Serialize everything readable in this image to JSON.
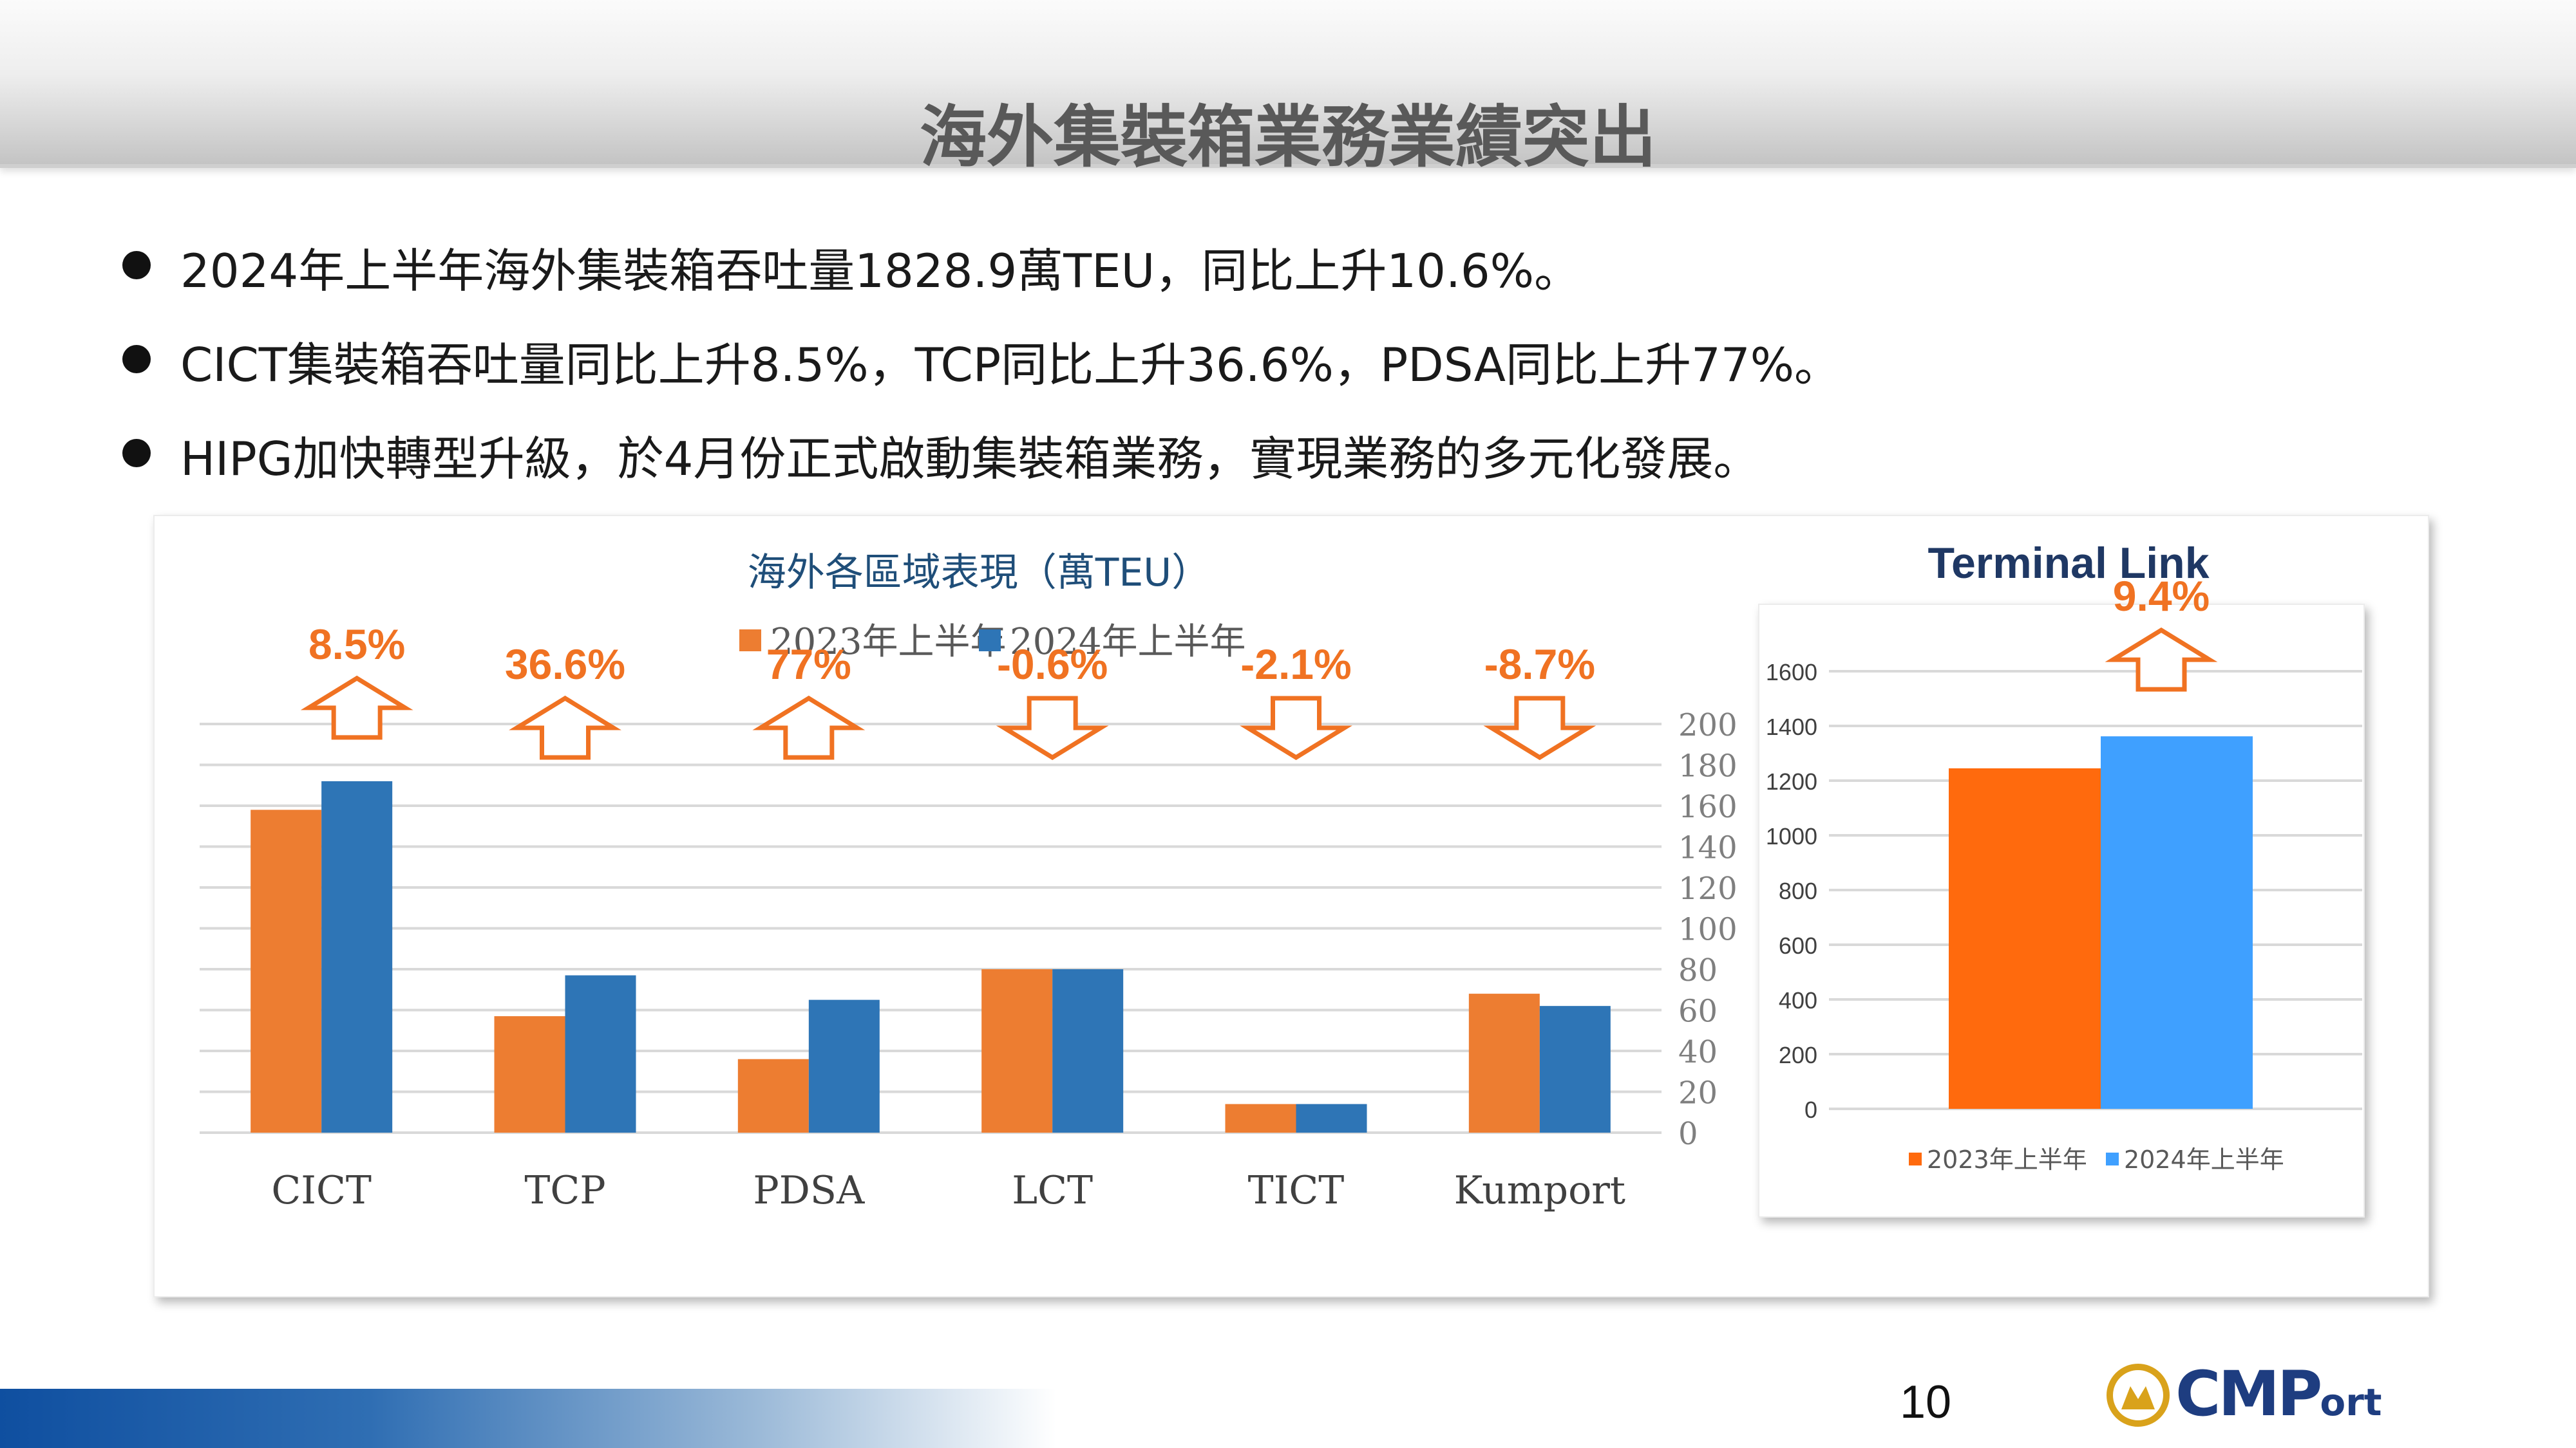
{
  "page": {
    "title": "海外集裝箱業務業績突出",
    "page_number": "10"
  },
  "bullets": [
    "2024年上半年海外集裝箱吞吐量1828.9萬TEU，同比上升10.6%。",
    "CICT集裝箱吞吐量同比上升8.5%，TCP同比上升36.6%，PDSA同比上升77%。",
    "HIPG加快轉型升級，於4月份正式啟動集裝箱業務，實現業務的多元化發展。"
  ],
  "logo": {
    "text_main": "CMP",
    "text_small": "ort"
  },
  "chart_data": [
    {
      "type": "bar",
      "title": "海外各區域表現（萬TEU）",
      "categories": [
        "CICT",
        "TCP",
        "PDSA",
        "LCT",
        "TICT",
        "Kumport"
      ],
      "series": [
        {
          "name": "2023年上半年",
          "color": "#ED7D31",
          "values": [
            158,
            57,
            36,
            80,
            14,
            68
          ]
        },
        {
          "name": "2024年上半年",
          "color": "#2E75B6",
          "values": [
            172,
            77,
            65,
            80,
            14,
            62
          ]
        }
      ],
      "annotations": [
        {
          "category": "CICT",
          "label": "8.5%",
          "direction": "up"
        },
        {
          "category": "TCP",
          "label": "36.6%",
          "direction": "up"
        },
        {
          "category": "PDSA",
          "label": "77%",
          "direction": "up"
        },
        {
          "category": "LCT",
          "label": "-0.6%",
          "direction": "down"
        },
        {
          "category": "TICT",
          "label": "-2.1%",
          "direction": "down"
        },
        {
          "category": "Kumport",
          "label": "-8.7%",
          "direction": "down"
        }
      ],
      "yticks": [
        0,
        20,
        40,
        60,
        80,
        100,
        120,
        140,
        160,
        180,
        200
      ],
      "ylim": [
        0,
        200
      ],
      "axis_position": "right",
      "legend": "top",
      "grid": true,
      "annotation_color": "#F07222"
    },
    {
      "type": "bar",
      "title": "Terminal Link",
      "categories": [
        ""
      ],
      "series": [
        {
          "name": "2023年上半年",
          "color": "#FF6A0D",
          "values": [
            1245
          ]
        },
        {
          "name": "2024年上半年",
          "color": "#3FA0FF",
          "values": [
            1362
          ]
        }
      ],
      "annotations": [
        {
          "label": "9.4%",
          "direction": "up"
        }
      ],
      "yticks": [
        0,
        200,
        400,
        600,
        800,
        1000,
        1200,
        1400,
        1600
      ],
      "ylim": [
        0,
        1600
      ],
      "axis_position": "left",
      "legend": "bottom",
      "grid": true,
      "title_color": "#1F3864",
      "annotation_color": "#F07222"
    }
  ]
}
